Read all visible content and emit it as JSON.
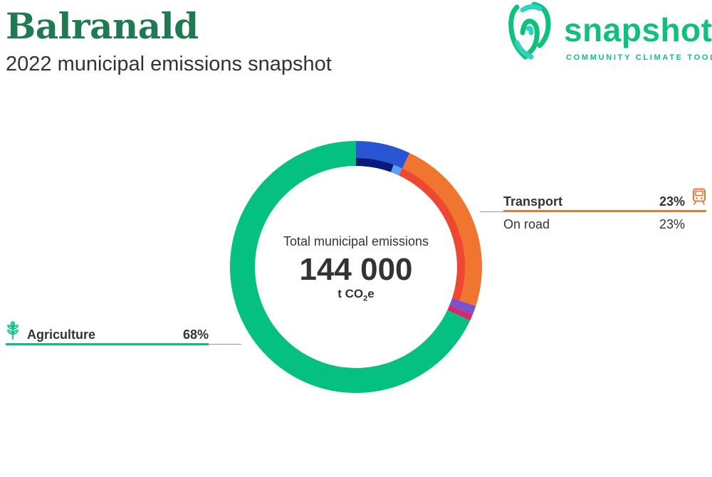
{
  "header": {
    "title": "Balranald",
    "subtitle": "2022 municipal emissions snapshot"
  },
  "logo": {
    "word": "snapshot",
    "tagline": "COMMUNITY CLIMATE TOOL",
    "icon": "fingerprint-icon",
    "color": "#10c07f"
  },
  "chart_data": {
    "type": "pie",
    "variant": "donut",
    "center": {
      "label": "Total municipal emissions",
      "value": "144 000",
      "unit_prefix": "t CO",
      "unit_sub": "2",
      "unit_suffix": "e"
    },
    "outer_ring": [
      {
        "key": "agriculture",
        "value": 68,
        "color": "#04c181"
      },
      {
        "key": "stationary_energy",
        "value": 7,
        "color": "#2a55d2"
      },
      {
        "key": "transport",
        "value": 23,
        "color": "#f07630"
      },
      {
        "key": "waste",
        "value": 1.2,
        "color": "#7c52c8"
      },
      {
        "key": "other",
        "value": 0.8,
        "color": "#d42a6a"
      }
    ],
    "inner_ring": [
      {
        "key": "agriculture",
        "value": 68,
        "color": "#04c181"
      },
      {
        "key": "stationary_energy_main",
        "value": 5.6,
        "color": "#0a1a7a"
      },
      {
        "key": "stationary_energy_minor",
        "value": 1.4,
        "color": "#5a9ef0"
      },
      {
        "key": "transport_on_road",
        "value": 23,
        "color": "#ee4732"
      },
      {
        "key": "waste",
        "value": 1.2,
        "color": "#7c52c8"
      },
      {
        "key": "other",
        "value": 0.8,
        "color": "#d42a6a"
      }
    ],
    "labels": {
      "transport": {
        "name": "Transport",
        "percent": "23%",
        "color": "#f07630",
        "icon": "train-icon",
        "sub": {
          "name": "On road",
          "percent": "23%"
        }
      },
      "agriculture": {
        "name": "Agriculture",
        "percent": "68%",
        "color": "#04c181",
        "icon": "wheat-icon"
      }
    }
  }
}
